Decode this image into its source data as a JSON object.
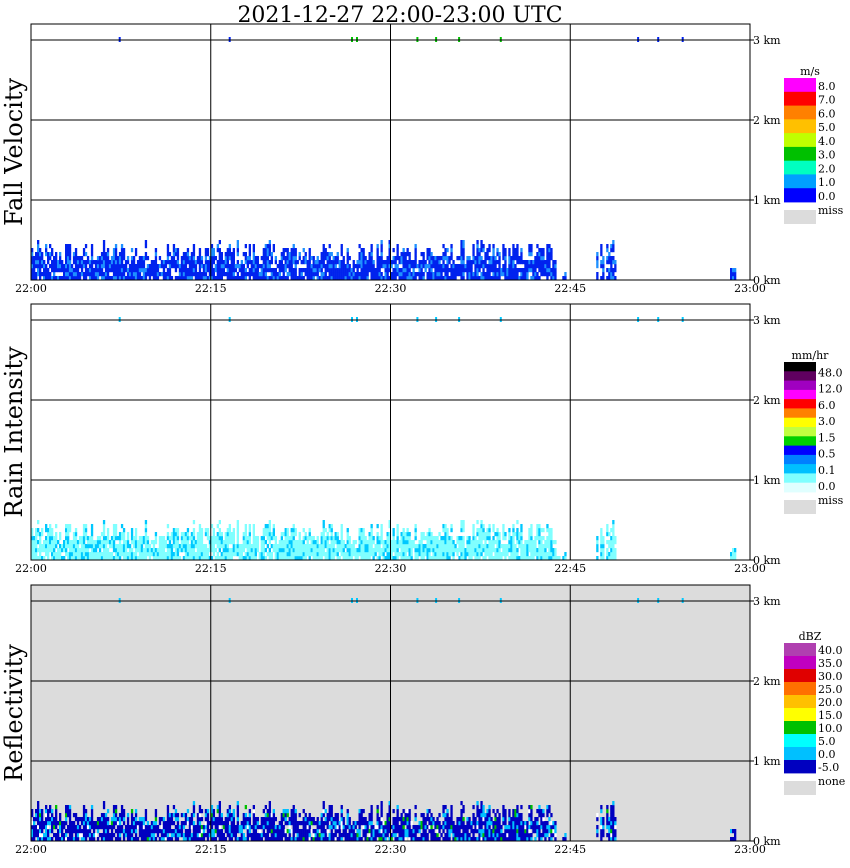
{
  "title": "2021-12-27   22:00-23:00 UTC",
  "x_ticks": [
    "22:00",
    "22:15",
    "22:30",
    "22:45",
    "23:00"
  ],
  "y_ticks": [
    "0 km",
    "1 km",
    "2 km",
    "3 km"
  ],
  "chart_data": [
    {
      "type": "heatmap",
      "ylabel": "Fall Velocity",
      "background": "#ffffff",
      "colorbar": {
        "unit": "m/s",
        "labels": [
          "8.0",
          "7.0",
          "6.0",
          "5.0",
          "4.0",
          "3.0",
          "2.0",
          "1.0",
          "0.0"
        ],
        "colors": [
          "#ff00ff",
          "#ff0000",
          "#ff8000",
          "#ffc000",
          "#c0ff00",
          "#00c000",
          "#00ffc0",
          "#00a0ff",
          "#0000ff"
        ],
        "missing_label": "miss",
        "missing_color": "#dcdcdc"
      },
      "dominant_color": "#0022ee",
      "secondary_color": "#1e90ff",
      "echo_top_km": 0.55
    },
    {
      "type": "heatmap",
      "ylabel": "Rain Intensity",
      "background": "#ffffff",
      "colorbar": {
        "unit": "mm/hr",
        "labels": [
          "48.0",
          "12.0",
          "6.0",
          "3.0",
          "1.5",
          "0.5",
          "0.1",
          "0.0"
        ],
        "colors": [
          "#000000",
          "#600060",
          "#a000c0",
          "#ff00ff",
          "#ff0000",
          "#ff8000",
          "#ffff00",
          "#c0ff40",
          "#00d000",
          "#0000ff",
          "#0080ff",
          "#00c0ff",
          "#80ffff",
          "#e0ffff"
        ],
        "missing_label": "miss",
        "missing_color": "#dcdcdc"
      },
      "dominant_color": "#80ffff",
      "secondary_color": "#00c8ff",
      "echo_top_km": 0.55
    },
    {
      "type": "heatmap",
      "ylabel": "Reflectivity",
      "background": "#dcdcdc",
      "colorbar": {
        "unit": "dBZ",
        "labels": [
          "40.0",
          "35.0",
          "30.0",
          "25.0",
          "20.0",
          "15.0",
          "10.0",
          "5.0",
          "0.0",
          "-5.0"
        ],
        "colors": [
          "#b040b0",
          "#c000c0",
          "#e00000",
          "#ff7000",
          "#ffc000",
          "#ffff00",
          "#00c000",
          "#00ffff",
          "#00c0ff",
          "#0000c0"
        ],
        "missing_label": "none",
        "missing_color": "#dcdcdc"
      },
      "dominant_color": "#0000c0",
      "secondary_color": "#00c0ff",
      "echo_top_km": 0.55
    }
  ]
}
